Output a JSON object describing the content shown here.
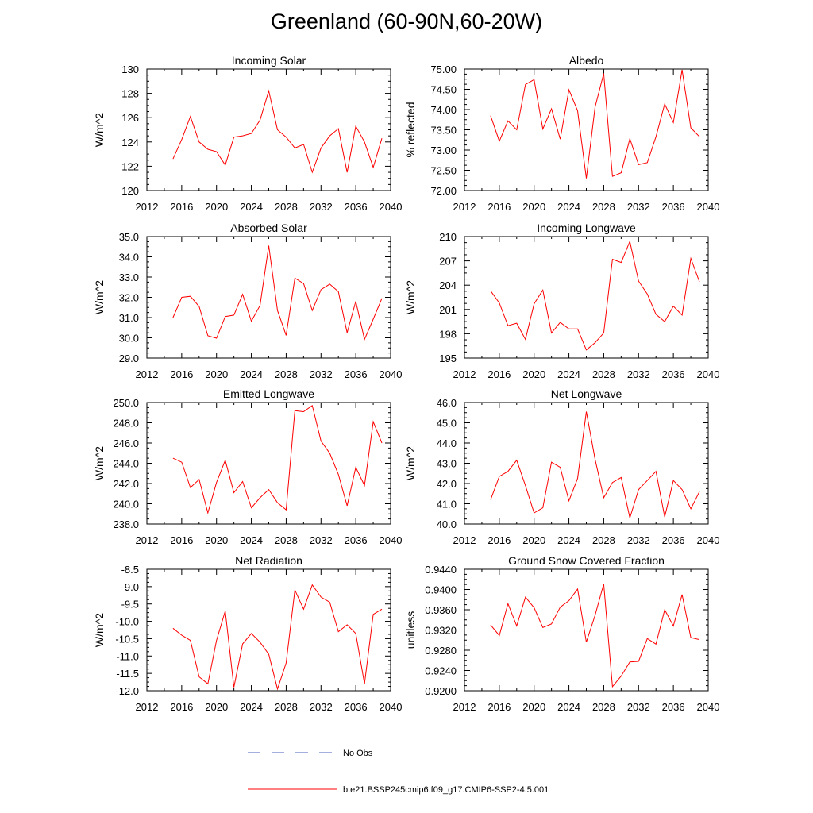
{
  "title": "Greenland (60-90N,60-20W)",
  "colors": {
    "model": "#ff0000",
    "obs": "#4a5fc1",
    "axis": "#000000"
  },
  "legend": [
    {
      "label": "No Obs",
      "style": "dashed",
      "color": "#4a5fc1"
    },
    {
      "label": "b.e21.BSSP245cmip6.f09_g17.CMIP6-SSP2-4.5.001",
      "style": "solid",
      "color": "#ff0000"
    }
  ],
  "chart_data": [
    {
      "type": "line",
      "title": "Incoming Solar",
      "ylabel": "W/m^2",
      "xlim": [
        2012,
        2040
      ],
      "xticks": [
        "2012",
        "2016",
        "2020",
        "2024",
        "2028",
        "2032",
        "2036",
        "2040"
      ],
      "ylim": [
        120,
        130
      ],
      "yticks": [
        "120",
        "122",
        "124",
        "126",
        "128",
        "130"
      ],
      "x": [
        2015,
        2016,
        2017,
        2018,
        2019,
        2020,
        2021,
        2022,
        2023,
        2024,
        2025,
        2026,
        2027,
        2028,
        2029,
        2030,
        2031,
        2032,
        2033,
        2034,
        2035,
        2036,
        2037,
        2038,
        2039
      ],
      "series": [
        {
          "name": "b.e21.BSSP245cmip6.f09_g17.CMIP6-SSP2-4.5.001",
          "values": [
            122.6,
            124.2,
            126.1,
            124.0,
            123.4,
            123.2,
            122.1,
            124.4,
            124.5,
            124.7,
            125.8,
            128.2,
            125.0,
            124.4,
            123.5,
            123.8,
            121.5,
            123.5,
            124.5,
            125.1,
            121.5,
            125.3,
            124.0,
            121.9,
            124.3
          ]
        }
      ]
    },
    {
      "type": "line",
      "title": "Albedo",
      "ylabel": "% reflected",
      "xlim": [
        2012,
        2040
      ],
      "xticks": [
        "2012",
        "2016",
        "2020",
        "2024",
        "2028",
        "2032",
        "2036",
        "2040"
      ],
      "ylim": [
        72.0,
        75.0
      ],
      "yticks": [
        "72.00",
        "72.50",
        "73.00",
        "73.50",
        "74.00",
        "74.50",
        "75.00"
      ],
      "x": [
        2015,
        2016,
        2017,
        2018,
        2019,
        2020,
        2021,
        2022,
        2023,
        2024,
        2025,
        2026,
        2027,
        2028,
        2029,
        2030,
        2031,
        2032,
        2033,
        2034,
        2035,
        2036,
        2037,
        2038,
        2039
      ],
      "series": [
        {
          "name": "b.e21.BSSP245cmip6.f09_g17.CMIP6-SSP2-4.5.001",
          "values": [
            73.85,
            73.22,
            73.72,
            73.5,
            74.62,
            74.74,
            73.52,
            74.02,
            73.27,
            74.49,
            73.97,
            72.3,
            74.06,
            74.89,
            72.35,
            72.44,
            73.28,
            72.64,
            72.69,
            73.33,
            74.14,
            73.68,
            74.98,
            73.55,
            73.33
          ]
        }
      ]
    },
    {
      "type": "line",
      "title": "Absorbed Solar",
      "ylabel": "W/m^2",
      "xlim": [
        2012,
        2040
      ],
      "xticks": [
        "2012",
        "2016",
        "2020",
        "2024",
        "2028",
        "2032",
        "2036",
        "2040"
      ],
      "ylim": [
        29.0,
        35.0
      ],
      "yticks": [
        "29.0",
        "30.0",
        "31.0",
        "32.0",
        "33.0",
        "34.0",
        "35.0"
      ],
      "x": [
        2015,
        2016,
        2017,
        2018,
        2019,
        2020,
        2021,
        2022,
        2023,
        2024,
        2025,
        2026,
        2027,
        2028,
        2029,
        2030,
        2031,
        2032,
        2033,
        2034,
        2035,
        2036,
        2037,
        2038,
        2039
      ],
      "series": [
        {
          "name": "b.e21.BSSP245cmip6.f09_g17.CMIP6-SSP2-4.5.001",
          "values": [
            31.0,
            32.0,
            32.05,
            31.55,
            30.1,
            29.98,
            31.05,
            31.12,
            32.15,
            30.82,
            31.6,
            34.55,
            31.35,
            30.12,
            32.95,
            32.68,
            31.35,
            32.38,
            32.65,
            32.28,
            30.25,
            31.8,
            29.92,
            30.92,
            31.95
          ]
        }
      ]
    },
    {
      "type": "line",
      "title": "Incoming Longwave",
      "ylabel": "W/m^2",
      "xlim": [
        2012,
        2040
      ],
      "xticks": [
        "2012",
        "2016",
        "2020",
        "2024",
        "2028",
        "2032",
        "2036",
        "2040"
      ],
      "ylim": [
        195,
        210
      ],
      "yticks": [
        "195",
        "198",
        "201",
        "204",
        "207",
        "210"
      ],
      "x": [
        2015,
        2016,
        2017,
        2018,
        2019,
        2020,
        2021,
        2022,
        2023,
        2024,
        2025,
        2026,
        2027,
        2028,
        2029,
        2030,
        2031,
        2032,
        2033,
        2034,
        2035,
        2036,
        2037,
        2038,
        2039
      ],
      "series": [
        {
          "name": "b.e21.BSSP245cmip6.f09_g17.CMIP6-SSP2-4.5.001",
          "values": [
            203.3,
            201.8,
            199.0,
            199.3,
            197.3,
            201.7,
            203.4,
            198.1,
            199.4,
            198.6,
            198.6,
            196.0,
            196.9,
            198.1,
            207.2,
            206.8,
            209.4,
            204.5,
            202.9,
            200.4,
            199.5,
            201.4,
            200.3,
            207.3,
            204.4
          ]
        }
      ]
    },
    {
      "type": "line",
      "title": "Emitted Longwave",
      "ylabel": "W/m^2",
      "xlim": [
        2012,
        2040
      ],
      "xticks": [
        "2012",
        "2016",
        "2020",
        "2024",
        "2028",
        "2032",
        "2036",
        "2040"
      ],
      "ylim": [
        238.0,
        250.0
      ],
      "yticks": [
        "238.0",
        "240.0",
        "242.0",
        "244.0",
        "246.0",
        "248.0",
        "250.0"
      ],
      "x": [
        2015,
        2016,
        2017,
        2018,
        2019,
        2020,
        2021,
        2022,
        2023,
        2024,
        2025,
        2026,
        2027,
        2028,
        2029,
        2030,
        2031,
        2032,
        2033,
        2034,
        2035,
        2036,
        2037,
        2038,
        2039
      ],
      "series": [
        {
          "name": "b.e21.BSSP245cmip6.f09_g17.CMIP6-SSP2-4.5.001",
          "values": [
            244.5,
            244.1,
            241.6,
            242.4,
            239.1,
            242.1,
            244.3,
            241.1,
            242.2,
            239.6,
            240.6,
            241.4,
            240.1,
            239.4,
            249.2,
            249.1,
            249.7,
            246.2,
            245.0,
            242.9,
            239.8,
            243.6,
            241.8,
            248.1,
            246.0
          ]
        }
      ]
    },
    {
      "type": "line",
      "title": "Net Longwave",
      "ylabel": "W/m^2",
      "xlim": [
        2012,
        2040
      ],
      "xticks": [
        "2012",
        "2016",
        "2020",
        "2024",
        "2028",
        "2032",
        "2036",
        "2040"
      ],
      "ylim": [
        40.0,
        46.0
      ],
      "yticks": [
        "40.0",
        "41.0",
        "42.0",
        "43.0",
        "44.0",
        "45.0",
        "46.0"
      ],
      "x": [
        2015,
        2016,
        2017,
        2018,
        2019,
        2020,
        2021,
        2022,
        2023,
        2024,
        2025,
        2026,
        2027,
        2028,
        2029,
        2030,
        2031,
        2032,
        2033,
        2034,
        2035,
        2036,
        2037,
        2038,
        2039
      ],
      "series": [
        {
          "name": "b.e21.BSSP245cmip6.f09_g17.CMIP6-SSP2-4.5.001",
          "values": [
            41.2,
            42.35,
            42.6,
            43.15,
            41.9,
            40.55,
            40.8,
            43.05,
            42.8,
            41.15,
            42.25,
            45.55,
            43.2,
            41.3,
            42.05,
            42.3,
            40.3,
            41.7,
            42.15,
            42.6,
            40.35,
            42.15,
            41.7,
            40.75,
            41.6
          ]
        }
      ]
    },
    {
      "type": "line",
      "title": "Net Radiation",
      "ylabel": "W/m^2",
      "xlim": [
        2012,
        2040
      ],
      "xticks": [
        "2012",
        "2016",
        "2020",
        "2024",
        "2028",
        "2032",
        "2036",
        "2040"
      ],
      "ylim": [
        -12.0,
        -8.5
      ],
      "yticks": [
        "-12.0",
        "-11.5",
        "-11.0",
        "-10.5",
        "-10.0",
        "-9.5",
        "-9.0",
        "-8.5"
      ],
      "x": [
        2015,
        2016,
        2017,
        2018,
        2019,
        2020,
        2021,
        2022,
        2023,
        2024,
        2025,
        2026,
        2027,
        2028,
        2029,
        2030,
        2031,
        2032,
        2033,
        2034,
        2035,
        2036,
        2037,
        2038,
        2039
      ],
      "series": [
        {
          "name": "b.e21.BSSP245cmip6.f09_g17.CMIP6-SSP2-4.5.001",
          "values": [
            -10.2,
            -10.4,
            -10.55,
            -11.6,
            -11.8,
            -10.55,
            -9.7,
            -11.9,
            -10.65,
            -10.35,
            -10.6,
            -10.95,
            -11.95,
            -11.2,
            -9.1,
            -9.65,
            -8.95,
            -9.3,
            -9.45,
            -10.3,
            -10.1,
            -10.35,
            -11.8,
            -9.8,
            -9.65
          ]
        }
      ]
    },
    {
      "type": "line",
      "title": "Ground Snow Covered Fraction",
      "ylabel": "unitless",
      "xlim": [
        2012,
        2040
      ],
      "xticks": [
        "2012",
        "2016",
        "2020",
        "2024",
        "2028",
        "2032",
        "2036",
        "2040"
      ],
      "ylim": [
        0.92,
        0.944
      ],
      "yticks": [
        "0.9200",
        "0.9240",
        "0.9280",
        "0.9320",
        "0.9360",
        "0.9400",
        "0.9440"
      ],
      "x": [
        2015,
        2016,
        2017,
        2018,
        2019,
        2020,
        2021,
        2022,
        2023,
        2024,
        2025,
        2026,
        2027,
        2028,
        2029,
        2030,
        2031,
        2032,
        2033,
        2034,
        2035,
        2036,
        2037,
        2038,
        2039
      ],
      "series": [
        {
          "name": "b.e21.BSSP245cmip6.f09_g17.CMIP6-SSP2-4.5.001",
          "values": [
            0.933,
            0.9309,
            0.9372,
            0.9328,
            0.9385,
            0.9364,
            0.9325,
            0.9332,
            0.9365,
            0.9378,
            0.9401,
            0.9296,
            0.9349,
            0.9411,
            0.9208,
            0.9229,
            0.9257,
            0.9258,
            0.9303,
            0.9292,
            0.936,
            0.9328,
            0.939,
            0.9305,
            0.9301
          ]
        }
      ]
    }
  ]
}
